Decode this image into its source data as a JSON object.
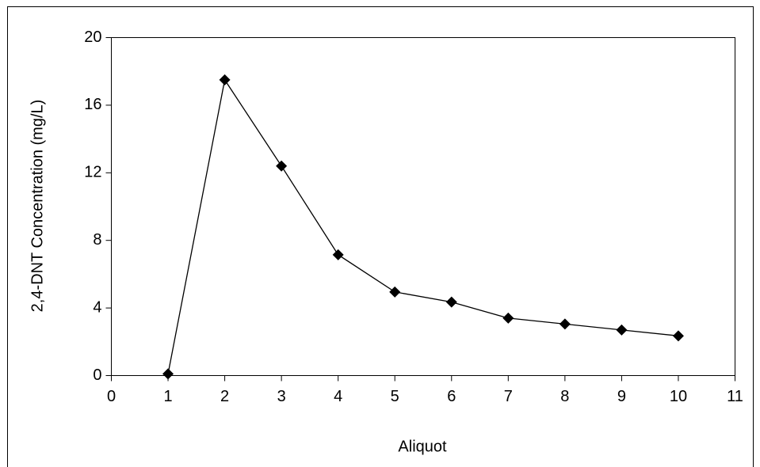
{
  "chart_data": {
    "type": "line",
    "x_label": "Aliquot",
    "y_label": "2,4-DNT  Concentration (mg/L)",
    "x": [
      1,
      2,
      3,
      4,
      5,
      6,
      7,
      8,
      9,
      10
    ],
    "values": [
      0.1,
      17.5,
      12.4,
      7.15,
      4.95,
      4.35,
      3.4,
      3.05,
      2.7,
      2.35
    ],
    "color": "#000000",
    "marker": "diamond",
    "xlim": [
      0,
      11
    ],
    "xticks": [
      0,
      1,
      2,
      3,
      4,
      5,
      6,
      7,
      8,
      9,
      10,
      11
    ],
    "ylim": [
      0,
      20
    ],
    "yticks": [
      0,
      4,
      8,
      12,
      16,
      20
    ],
    "grid": false
  }
}
